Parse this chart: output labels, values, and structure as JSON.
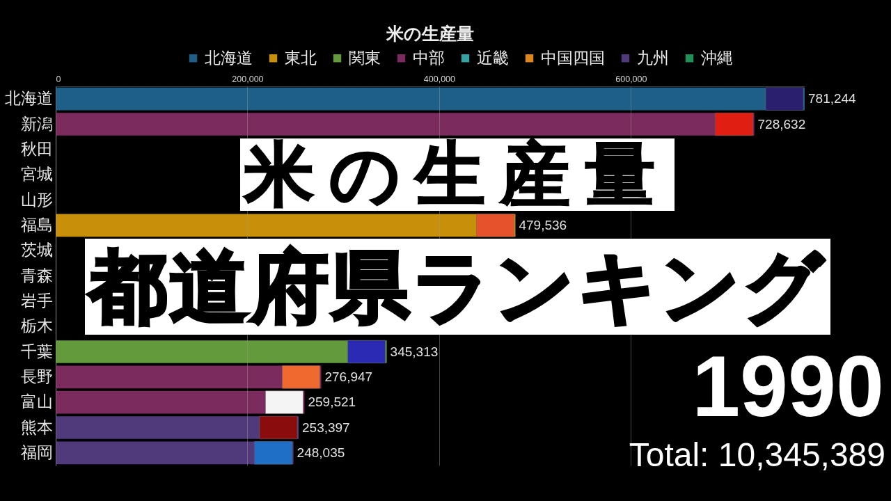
{
  "chart_data": {
    "type": "bar",
    "orientation": "horizontal",
    "title": "米の生産量",
    "categories": [
      "北海道",
      "新潟",
      "秋田",
      "宮城",
      "山形",
      "福島",
      "茨城",
      "青森",
      "岩手",
      "栃木",
      "千葉",
      "長野",
      "富山",
      "熊本",
      "福岡"
    ],
    "series": [
      {
        "name": "北海道",
        "color": "#1d5f86",
        "values": [
          781244,
          null,
          null,
          null,
          null,
          null,
          null,
          null,
          null,
          null,
          null,
          null,
          null,
          null,
          null
        ],
        "value_labels": [
          "781,244",
          null,
          null,
          null,
          null,
          null,
          null,
          null,
          null,
          null,
          null,
          null,
          null,
          null,
          null
        ]
      },
      {
        "name": "東北",
        "color": "#c8900a",
        "values": [
          null,
          null,
          null,
          null,
          null,
          479536,
          null,
          null,
          null,
          null,
          null,
          null,
          null,
          null,
          null
        ],
        "value_labels": [
          null,
          null,
          null,
          null,
          null,
          "479,536",
          null,
          null,
          null,
          null,
          null,
          null,
          null,
          null,
          null
        ]
      },
      {
        "name": "関東",
        "color": "#629a3c",
        "values": [
          null,
          null,
          null,
          null,
          null,
          null,
          null,
          null,
          null,
          null,
          345313,
          null,
          null,
          null,
          null
        ],
        "value_labels": [
          null,
          null,
          null,
          null,
          null,
          null,
          null,
          null,
          null,
          null,
          "345,313",
          null,
          null,
          null,
          null
        ]
      },
      {
        "name": "中部",
        "color": "#7b2b5e",
        "values": [
          null,
          728632,
          null,
          null,
          null,
          null,
          null,
          null,
          null,
          null,
          null,
          276947,
          259521,
          null,
          null
        ],
        "value_labels": [
          null,
          "728,632",
          null,
          null,
          null,
          null,
          null,
          null,
          null,
          null,
          null,
          "276,947",
          "259,521",
          null,
          null
        ]
      },
      {
        "name": "近畿",
        "color": "#35a3a3",
        "values": [
          null,
          null,
          null,
          null,
          null,
          null,
          null,
          null,
          null,
          null,
          null,
          null,
          null,
          null,
          null
        ]
      },
      {
        "name": "中国四国",
        "color": "#dc861c",
        "values": [
          null,
          null,
          null,
          null,
          null,
          null,
          null,
          null,
          null,
          null,
          null,
          null,
          null,
          null,
          null
        ]
      },
      {
        "name": "九州",
        "color": "#503a7c",
        "values": [
          null,
          null,
          null,
          null,
          null,
          null,
          null,
          null,
          null,
          null,
          null,
          null,
          null,
          253397,
          248035
        ],
        "value_labels": [
          null,
          null,
          null,
          null,
          null,
          null,
          null,
          null,
          null,
          null,
          null,
          null,
          null,
          "253,397",
          "248,035"
        ]
      },
      {
        "name": "沖縄",
        "color": "#23905a",
        "values": [
          null,
          null,
          null,
          null,
          null,
          null,
          null,
          null,
          null,
          null,
          null,
          null,
          null,
          null,
          null
        ]
      }
    ],
    "xlim": [
      0,
      781244
    ],
    "xticks": [
      0,
      {
        "value": 200000,
        "label": "200,000"
      },
      {
        "value": 400000,
        "label": "400,000"
      },
      {
        "value": 600000,
        "label": "600,000"
      }
    ],
    "grid": "x",
    "legend": "top",
    "annotations": [
      "米の生産量",
      "都道府県ランキング",
      "1990",
      "Total: 10,345,389"
    ]
  }
}
